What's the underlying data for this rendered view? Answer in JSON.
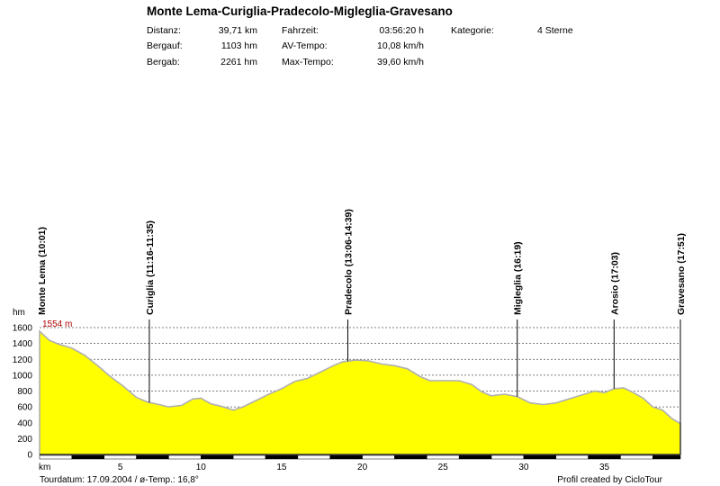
{
  "header": {
    "title": "Monte Lema-Curiglia-Pradecolo-Migleglia-Gravesano",
    "distance_label": "Distanz:",
    "distance_value": "39,71 km",
    "ascent_label": "Bergauf:",
    "ascent_value": "1103 hm",
    "descent_label": "Bergab:",
    "descent_value": "2261 hm",
    "ridetime_label": "Fahrzeit:",
    "ridetime_value": "03:56:20 h",
    "avgspeed_label": "AV-Tempo:",
    "avgspeed_value": "10,08 km/h",
    "maxspeed_label": "Max-Tempo:",
    "maxspeed_value": "39,60 km/h",
    "category_label": "Kategorie:",
    "category_value": "4 Sterne"
  },
  "footer": {
    "tourdate": "Tourdatum: 17.09.2004  /  ø-Temp.: 16,8°",
    "credit": "Profil created by CicloTour"
  },
  "chart_data": {
    "type": "area",
    "ylabel": "hm",
    "xlabel": "km",
    "ylim": [
      0,
      1600
    ],
    "xlim": [
      0,
      39.71
    ],
    "yticks": [
      0,
      200,
      400,
      600,
      800,
      1000,
      1200,
      1400,
      1600
    ],
    "xticks": [
      5,
      10,
      15,
      20,
      25,
      30,
      35
    ],
    "grid": true,
    "fill_color": "#ffff00",
    "line_color": "#b0b0b0",
    "max_label": "1554 m",
    "max_value": 1554,
    "x": [
      0,
      0.6,
      1.2,
      2,
      2.8,
      3.6,
      4.4,
      5.2,
      6,
      6.7,
      7.2,
      8,
      8.8,
      9.5,
      10,
      10.6,
      11.2,
      12,
      12.6,
      13.4,
      14.2,
      15,
      15.8,
      16.6,
      17.4,
      18.2,
      18.8,
      19.6,
      20.4,
      21.2,
      22,
      22.8,
      23.6,
      24.2,
      24.8,
      25.4,
      26,
      26.8,
      27.4,
      28,
      28.8,
      29.6,
      30.4,
      31.2,
      32,
      32.8,
      33.6,
      34.4,
      35,
      35.6,
      36.2,
      36.8,
      37.4,
      38,
      38.6,
      39.2,
      39.71
    ],
    "y": [
      1554,
      1440,
      1390,
      1340,
      1250,
      1120,
      980,
      860,
      720,
      660,
      640,
      600,
      620,
      700,
      710,
      640,
      610,
      560,
      600,
      680,
      760,
      830,
      920,
      960,
      1040,
      1120,
      1170,
      1190,
      1180,
      1140,
      1120,
      1080,
      980,
      930,
      930,
      930,
      930,
      880,
      790,
      740,
      760,
      730,
      650,
      630,
      650,
      700,
      750,
      800,
      780,
      830,
      840,
      780,
      710,
      600,
      560,
      450,
      390
    ],
    "waypoints": [
      {
        "km": 0,
        "label": "Monte  Lema (10:01)"
      },
      {
        "km": 6.8,
        "label": "Curiglia (11:16-11:35)"
      },
      {
        "km": 19.1,
        "label": "Pradecolo (13:06-14:39)"
      },
      {
        "km": 29.6,
        "label": "Migleglia (16:19)"
      },
      {
        "km": 35.6,
        "label": "Arosio (17:03)"
      },
      {
        "km": 39.71,
        "label": "Gravesano (17:51)"
      }
    ]
  }
}
